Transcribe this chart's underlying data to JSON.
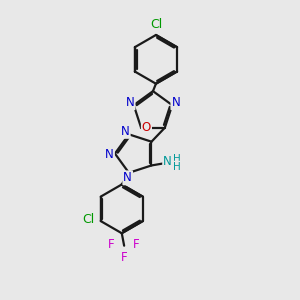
{
  "bg_color": "#e8e8e8",
  "bond_color": "#1a1a1a",
  "bond_width": 1.6,
  "atom_colors": {
    "C": "#1a1a1a",
    "N": "#0000cc",
    "O": "#cc0000",
    "Cl": "#009900",
    "F": "#cc00cc",
    "NH2_N": "#009999",
    "NH2_H": "#009999"
  },
  "font_size": 8.5,
  "fig_bg": "#e8e8e8"
}
